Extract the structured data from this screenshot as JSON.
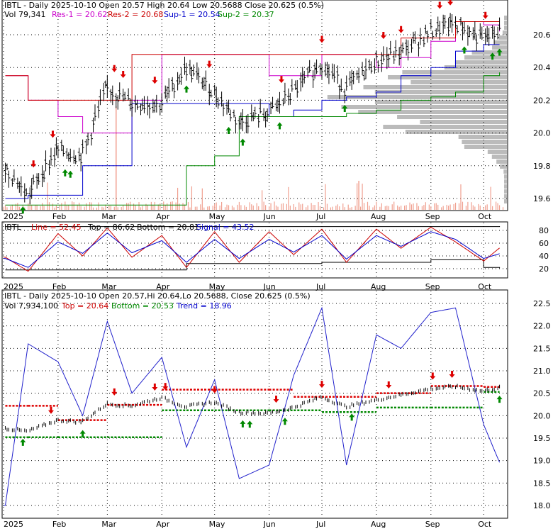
{
  "panels": {
    "price": {
      "header": {
        "title": "IBTL - Daily 2025-10-10 Open 20.57  High 20.64  Low 20.5688  Close 20.625 (0.5%)",
        "vol": "Vol 79,341",
        "res1": "Res-1 = 20.62",
        "res2": "Res-2 = 20.68",
        "sup1": "Sup-1 = 20.54",
        "sup2": "Sup-2 = 20.37"
      },
      "y_ticks": [
        "20.6",
        "20.4",
        "20.2",
        "20.0",
        "19.8",
        "19.6"
      ]
    },
    "osc": {
      "header": {
        "name": "IBTL",
        "line": "Line = 52.45",
        "top": "Top = 86.62",
        "bottom": "Bottom = 20.81",
        "signal": "Signal = 43.52"
      },
      "y_ticks": [
        "80",
        "60",
        "40",
        "20"
      ]
    },
    "trend": {
      "header": {
        "title": "IBTL - Daily 2025-10-10 Open 20.57,Hi 20.64,Lo 20.5688, Close 20.625 (0.5%)",
        "vol": "Vol 7,934,100",
        "top": "Top = 20.64",
        "bottom": "Bottom = 20.53",
        "trend": "Trend = 18.96"
      },
      "y_ticks": [
        "22.5",
        "22.0",
        "21.5",
        "21.0",
        "20.5",
        "20.0",
        "19.5",
        "19.0",
        "18.5",
        "18.0"
      ]
    }
  },
  "x_axis_labels": [
    "2025",
    "Feb",
    "Mar",
    "Apr",
    "May",
    "Jun",
    "Jul",
    "Aug",
    "Sep",
    "Oct"
  ],
  "colors": {
    "res1": "#cc00cc",
    "res2": "#cc0000",
    "sup1": "#0000cc",
    "sup2": "#008800",
    "up_arrow": "#008800",
    "down_arrow": "#dd0000",
    "profile": "#bbbbbb",
    "volume": "#f0a090",
    "line": "#cc0000",
    "signal": "#0000cc"
  },
  "chart_data": [
    {
      "type": "line",
      "panel": "price",
      "x": [
        "2025-01-02",
        "2025-01-15",
        "2025-02-01",
        "2025-02-15",
        "2025-03-01",
        "2025-03-15",
        "2025-04-01",
        "2025-04-15",
        "2025-05-01",
        "2025-05-15",
        "2025-06-01",
        "2025-06-15",
        "2025-07-01",
        "2025-07-15",
        "2025-08-01",
        "2025-08-15",
        "2025-09-01",
        "2025-09-15",
        "2025-10-01",
        "2025-10-10"
      ],
      "series": [
        {
          "name": "Close",
          "values": [
            19.8,
            19.62,
            19.9,
            19.86,
            20.28,
            20.18,
            20.18,
            20.4,
            20.25,
            20.07,
            20.12,
            20.25,
            20.43,
            20.27,
            20.44,
            20.49,
            20.62,
            20.67,
            20.57,
            20.625
          ]
        },
        {
          "name": "Res-1",
          "values": [
            20.35,
            20.2,
            20.1,
            20.0,
            20.0,
            20.2,
            20.48,
            20.48,
            20.48,
            20.48,
            20.35,
            20.35,
            20.48,
            20.48,
            20.4,
            20.46,
            20.56,
            20.68,
            20.66,
            20.62
          ]
        },
        {
          "name": "Res-2",
          "values": [
            20.35,
            20.2,
            20.2,
            20.2,
            20.2,
            20.48,
            20.48,
            20.48,
            20.48,
            20.48,
            20.48,
            20.48,
            20.48,
            20.48,
            20.48,
            20.58,
            20.58,
            20.68,
            20.68,
            20.68
          ]
        },
        {
          "name": "Sup-1",
          "values": [
            19.6,
            19.62,
            19.62,
            19.8,
            19.8,
            20.18,
            20.18,
            20.18,
            20.18,
            20.18,
            20.1,
            20.14,
            20.2,
            20.22,
            20.25,
            20.35,
            20.4,
            20.5,
            20.54,
            20.54
          ]
        },
        {
          "name": "Sup-2",
          "values": [
            19.56,
            19.56,
            19.56,
            19.56,
            19.56,
            19.56,
            19.56,
            19.8,
            19.86,
            20.1,
            20.1,
            20.1,
            20.1,
            20.12,
            20.14,
            20.2,
            20.22,
            20.25,
            20.35,
            20.37
          ]
        }
      ],
      "ylim": [
        19.55,
        20.72
      ]
    },
    {
      "type": "line",
      "panel": "oscillator",
      "x": [
        "2025-01-02",
        "2025-01-15",
        "2025-02-01",
        "2025-02-15",
        "2025-03-01",
        "2025-03-15",
        "2025-04-01",
        "2025-04-15",
        "2025-05-01",
        "2025-05-15",
        "2025-06-01",
        "2025-06-15",
        "2025-07-01",
        "2025-07-15",
        "2025-08-01",
        "2025-08-15",
        "2025-09-01",
        "2025-09-15",
        "2025-10-01",
        "2025-10-10"
      ],
      "series": [
        {
          "name": "Line",
          "values": [
            38,
            16,
            75,
            40,
            84,
            38,
            72,
            22,
            78,
            30,
            78,
            42,
            82,
            30,
            82,
            52,
            85,
            62,
            32,
            52.45
          ]
        },
        {
          "name": "Signal",
          "values": [
            36,
            22,
            62,
            44,
            76,
            45,
            64,
            30,
            66,
            36,
            66,
            46,
            72,
            35,
            72,
            55,
            78,
            66,
            36,
            43.52
          ]
        },
        {
          "name": "Top",
          "values": [
            86,
            86,
            86,
            86,
            86,
            86,
            86,
            86,
            86,
            86,
            86,
            86,
            86,
            86,
            86,
            86,
            86,
            86,
            86,
            86.62
          ]
        },
        {
          "name": "Bottom",
          "values": [
            18,
            18,
            18,
            18,
            18,
            18,
            18,
            28,
            28,
            28,
            28,
            28,
            30,
            30,
            30,
            30,
            34,
            34,
            22,
            20.81
          ]
        }
      ],
      "ylim": [
        10,
        95
      ]
    },
    {
      "type": "line",
      "panel": "trend",
      "x": [
        "2025-01-02",
        "2025-01-15",
        "2025-02-01",
        "2025-02-15",
        "2025-03-01",
        "2025-03-15",
        "2025-04-01",
        "2025-04-15",
        "2025-05-01",
        "2025-05-15",
        "2025-06-01",
        "2025-06-15",
        "2025-07-01",
        "2025-07-15",
        "2025-08-01",
        "2025-08-15",
        "2025-09-01",
        "2025-09-15",
        "2025-10-01",
        "2025-10-10"
      ],
      "series": [
        {
          "name": "Close",
          "values": [
            19.72,
            19.65,
            19.9,
            19.86,
            20.26,
            20.22,
            20.4,
            20.2,
            20.3,
            20.08,
            20.05,
            20.18,
            20.42,
            20.2,
            20.35,
            20.46,
            20.6,
            20.65,
            20.55,
            20.625
          ]
        },
        {
          "name": "Trend",
          "values": [
            18.0,
            21.6,
            21.2,
            20.0,
            22.1,
            20.5,
            21.3,
            19.3,
            20.8,
            18.6,
            18.9,
            20.9,
            22.4,
            18.9,
            21.8,
            21.5,
            22.3,
            22.4,
            19.8,
            18.96
          ]
        },
        {
          "name": "Top",
          "values": [
            20.22,
            20.22,
            19.9,
            19.9,
            20.24,
            20.24,
            20.58,
            20.58,
            20.58,
            20.58,
            20.58,
            20.42,
            20.42,
            20.42,
            20.5,
            20.5,
            20.66,
            20.66,
            20.64,
            20.64
          ]
        },
        {
          "name": "Bottom",
          "values": [
            19.52,
            19.52,
            19.52,
            19.52,
            19.52,
            19.52,
            20.12,
            20.12,
            20.12,
            20.12,
            20.12,
            20.12,
            20.08,
            20.08,
            20.18,
            20.18,
            20.18,
            20.18,
            20.53,
            20.53
          ]
        }
      ],
      "ylim": [
        17.8,
        22.7
      ]
    }
  ]
}
